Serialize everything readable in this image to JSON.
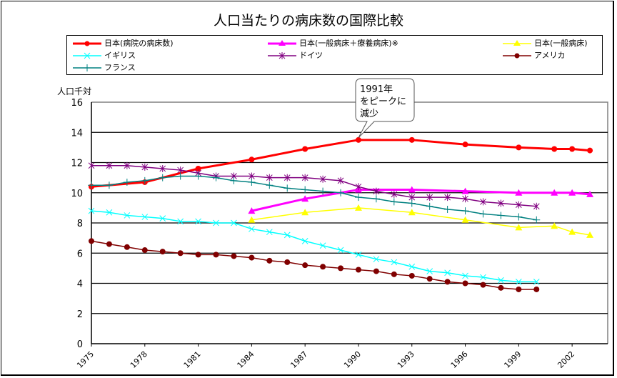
{
  "chart_data": {
    "type": "line",
    "title": "人口当たりの病床数の国際比較",
    "xlabel": "",
    "ylabel": "人口千対",
    "xlim": [
      1975,
      2004
    ],
    "ylim": [
      0,
      16
    ],
    "yticks": [
      0,
      2,
      4,
      6,
      8,
      10,
      12,
      14,
      16
    ],
    "xticks": [
      "1975",
      "1978",
      "1981",
      "1984",
      "1987",
      "1990",
      "1993",
      "1996",
      "1999",
      "2002"
    ],
    "grid": true,
    "legend_position": "top",
    "annotation": {
      "text": "1991年をピークに減少",
      "x": 1990,
      "y": 13.5
    },
    "series": [
      {
        "name": "日本(病院の病床数)",
        "color": "#ff0000",
        "marker": "circle",
        "width": 3,
        "x": [
          1975,
          1978,
          1981,
          1984,
          1987,
          1990,
          1993,
          1996,
          1999,
          2001,
          2002,
          2003
        ],
        "y": [
          10.4,
          10.7,
          11.6,
          12.2,
          12.9,
          13.5,
          13.5,
          13.2,
          13.0,
          12.9,
          12.9,
          12.8
        ]
      },
      {
        "name": "日本(一般病床＋療養病床)※",
        "color": "#ff00ff",
        "marker": "triangle",
        "width": 3,
        "x": [
          1984,
          1987,
          1990,
          1993,
          1996,
          1999,
          2001,
          2002,
          2003
        ],
        "y": [
          8.8,
          9.6,
          10.2,
          10.2,
          10.1,
          10.0,
          10.0,
          10.0,
          9.9
        ]
      },
      {
        "name": "日本(一般病床)",
        "color": "#ffff00",
        "marker": "triangle",
        "width": 1.5,
        "x": [
          1984,
          1987,
          1990,
          1993,
          1996,
          1999,
          2001,
          2002,
          2003
        ],
        "y": [
          8.2,
          8.7,
          9.0,
          8.7,
          8.2,
          7.7,
          7.8,
          7.4,
          7.2
        ]
      },
      {
        "name": "イギリス",
        "color": "#00ffff",
        "marker": "x",
        "width": 1.5,
        "x": [
          1975,
          1976,
          1977,
          1978,
          1979,
          1980,
          1981,
          1982,
          1983,
          1984,
          1985,
          1986,
          1987,
          1988,
          1989,
          1990,
          1991,
          1992,
          1993,
          1994,
          1995,
          1996,
          1997,
          1998,
          1999,
          2000
        ],
        "y": [
          8.8,
          8.7,
          8.5,
          8.4,
          8.3,
          8.1,
          8.1,
          8.0,
          8.0,
          7.6,
          7.4,
          7.2,
          6.8,
          6.5,
          6.2,
          5.9,
          5.6,
          5.4,
          5.1,
          4.8,
          4.7,
          4.5,
          4.4,
          4.2,
          4.1,
          4.1
        ]
      },
      {
        "name": "ドイツ",
        "color": "#800080",
        "marker": "asterisk",
        "width": 1.5,
        "x": [
          1975,
          1976,
          1977,
          1978,
          1979,
          1980,
          1981,
          1982,
          1983,
          1984,
          1985,
          1986,
          1987,
          1988,
          1989,
          1990,
          1991,
          1992,
          1993,
          1994,
          1995,
          1996,
          1997,
          1998,
          1999,
          2000
        ],
        "y": [
          11.8,
          11.8,
          11.8,
          11.7,
          11.6,
          11.5,
          11.3,
          11.1,
          11.1,
          11.1,
          11.0,
          11.0,
          11.0,
          10.9,
          10.8,
          10.4,
          10.1,
          9.9,
          9.7,
          9.7,
          9.7,
          9.6,
          9.4,
          9.3,
          9.2,
          9.1
        ]
      },
      {
        "name": "アメリカ",
        "color": "#800000",
        "marker": "circle",
        "width": 1.5,
        "x": [
          1975,
          1976,
          1977,
          1978,
          1979,
          1980,
          1981,
          1982,
          1983,
          1984,
          1985,
          1986,
          1987,
          1988,
          1989,
          1990,
          1991,
          1992,
          1993,
          1994,
          1995,
          1996,
          1997,
          1998,
          1999,
          2000
        ],
        "y": [
          6.8,
          6.6,
          6.4,
          6.2,
          6.1,
          6.0,
          5.9,
          5.9,
          5.8,
          5.7,
          5.5,
          5.4,
          5.2,
          5.1,
          5.0,
          4.9,
          4.8,
          4.6,
          4.5,
          4.3,
          4.1,
          4.0,
          3.9,
          3.7,
          3.6,
          3.6
        ]
      },
      {
        "name": "フランス",
        "color": "#008080",
        "marker": "plus",
        "width": 1.5,
        "x": [
          1975,
          1976,
          1977,
          1978,
          1979,
          1980,
          1981,
          1982,
          1983,
          1984,
          1985,
          1986,
          1987,
          1988,
          1989,
          1990,
          1991,
          1992,
          1993,
          1994,
          1995,
          1996,
          1997,
          1998,
          1999,
          2000
        ],
        "y": [
          10.5,
          10.5,
          10.7,
          10.8,
          11.0,
          11.1,
          11.1,
          11.0,
          10.8,
          10.7,
          10.5,
          10.3,
          10.2,
          10.1,
          10.0,
          9.7,
          9.6,
          9.4,
          9.3,
          9.1,
          8.9,
          8.8,
          8.6,
          8.5,
          8.4,
          8.2
        ]
      }
    ]
  }
}
